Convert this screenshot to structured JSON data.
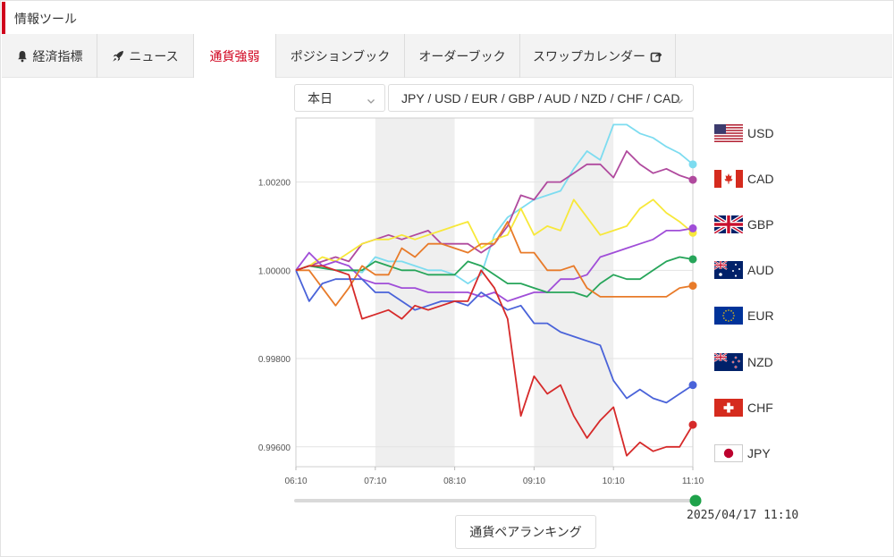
{
  "header": {
    "title": "情報ツール"
  },
  "tabs": [
    {
      "label": "経済指標",
      "icon": "bell-icon",
      "active": false
    },
    {
      "label": "ニュース",
      "icon": "rocket-icon",
      "active": false
    },
    {
      "label": "通貨強弱",
      "icon": "",
      "active": true
    },
    {
      "label": "ポジションブック",
      "icon": "",
      "active": false
    },
    {
      "label": "オーダーブック",
      "icon": "",
      "active": false
    },
    {
      "label": "スワップカレンダー",
      "icon": "external-link-icon",
      "active": false
    }
  ],
  "controls": {
    "period": "本日",
    "currencies": "JPY / USD / EUR / GBP / AUD / NZD / CHF / CAD"
  },
  "legend": [
    {
      "code": "USD",
      "flag": "us-flag-icon"
    },
    {
      "code": "CAD",
      "flag": "canada-flag-icon"
    },
    {
      "code": "GBP",
      "flag": "uk-flag-icon"
    },
    {
      "code": "AUD",
      "flag": "australia-flag-icon"
    },
    {
      "code": "EUR",
      "flag": "eu-flag-icon"
    },
    {
      "code": "NZD",
      "flag": "new-zealand-flag-icon"
    },
    {
      "code": "CHF",
      "flag": "switzerland-flag-icon"
    },
    {
      "code": "JPY",
      "flag": "japan-flag-icon"
    }
  ],
  "slider": {
    "timestamp": "2025/04/17 11:10",
    "position": 1.0,
    "color": "#1fa24a"
  },
  "ranking_button": "通貨ペアランキング",
  "chart_data": {
    "type": "line",
    "x": [
      "06:10",
      "06:20",
      "06:30",
      "06:40",
      "06:50",
      "07:00",
      "07:10",
      "07:20",
      "07:30",
      "07:40",
      "07:50",
      "08:00",
      "08:10",
      "08:20",
      "08:30",
      "08:40",
      "08:50",
      "09:00",
      "09:10",
      "09:20",
      "09:30",
      "09:40",
      "09:50",
      "10:00",
      "10:10",
      "10:20",
      "10:30",
      "10:40",
      "10:50",
      "11:00",
      "11:10"
    ],
    "x_ticks": [
      "06:10",
      "07:10",
      "08:10",
      "09:10",
      "10:10",
      "11:10"
    ],
    "y_ticks": [
      "1.00200",
      "1.00000",
      "0.99800",
      "0.99600"
    ],
    "ylim": [
      0.99555,
      1.00345
    ],
    "grid": true,
    "shaded_bands": [
      [
        "07:10",
        "08:10"
      ],
      [
        "09:10",
        "10:10"
      ]
    ],
    "series": [
      {
        "name": "USD",
        "color": "#7ddcf0",
        "values": [
          1.0,
          1.0001,
          1.00005,
          1.0,
          1.0,
          0.99995,
          1.0003,
          1.0002,
          1.0002,
          1.0001,
          1.0,
          1.0,
          0.9999,
          0.9997,
          0.9999,
          1.0008,
          1.0012,
          1.0014,
          1.0016,
          1.0017,
          1.0018,
          1.0023,
          1.0027,
          1.0025,
          1.0033,
          1.0033,
          1.0031,
          1.003,
          1.0028,
          1.00265,
          1.0024
        ]
      },
      {
        "name": "CAD",
        "color": "#b04a9e",
        "values": [
          1.0,
          1.0001,
          1.0002,
          1.0003,
          1.0002,
          1.0006,
          1.0007,
          1.0008,
          1.0007,
          1.0008,
          1.0009,
          1.0006,
          1.0006,
          1.0006,
          1.0004,
          1.0006,
          1.001,
          1.0017,
          1.0016,
          1.002,
          1.002,
          1.0022,
          1.0024,
          1.0024,
          1.0021,
          1.0027,
          1.0024,
          1.0022,
          1.0023,
          1.00215,
          1.00205
        ]
      },
      {
        "name": "GBP",
        "color": "#f7e83a",
        "values": [
          1.0,
          1.0001,
          1.0003,
          1.0002,
          1.0004,
          1.0006,
          1.0007,
          1.0007,
          1.0008,
          1.0007,
          1.0008,
          1.0009,
          1.001,
          1.0011,
          1.0005,
          1.0007,
          1.0008,
          1.0014,
          1.0008,
          1.001,
          1.0009,
          1.0016,
          1.0012,
          1.0008,
          1.0009,
          1.001,
          1.0014,
          1.0016,
          1.0013,
          1.0011,
          1.00085
        ]
      },
      {
        "name": "NZD",
        "color": "#a04ed8",
        "values": [
          1.0,
          1.0004,
          1.0001,
          1.0002,
          1.0001,
          0.9998,
          0.9997,
          0.9997,
          0.9996,
          0.9996,
          0.9995,
          0.9995,
          0.9995,
          0.9995,
          0.9994,
          0.9995,
          0.9993,
          0.9994,
          0.9995,
          0.9995,
          0.9998,
          0.9998,
          0.9999,
          1.0003,
          1.0004,
          1.0005,
          1.0006,
          1.0007,
          1.0009,
          1.0009,
          1.00095
        ]
      },
      {
        "name": "AUD",
        "color": "#27a55a",
        "values": [
          1.0,
          1.0001,
          1.00005,
          1.0,
          1.0,
          1.0,
          1.0002,
          1.0001,
          1.0,
          1.0,
          0.9999,
          0.9999,
          0.9999,
          1.0002,
          1.0001,
          0.9999,
          0.9997,
          0.9997,
          0.9996,
          0.9995,
          0.9995,
          0.9995,
          0.9994,
          0.9997,
          0.9999,
          0.9998,
          0.9998,
          1.0,
          1.0002,
          1.0003,
          1.00025
        ]
      },
      {
        "name": "EUR",
        "color": "#e87b2a",
        "values": [
          1.0,
          1.0,
          0.9996,
          0.9992,
          0.9996,
          1.0001,
          0.9999,
          0.9999,
          1.0005,
          1.0003,
          1.0006,
          1.0006,
          1.0005,
          1.0004,
          1.0006,
          1.0006,
          1.0011,
          1.0004,
          1.0004,
          1.0,
          1.0,
          1.0001,
          0.9996,
          0.9994,
          0.9994,
          0.9994,
          0.9994,
          0.9994,
          0.9994,
          0.9996,
          0.99965
        ]
      },
      {
        "name": "CHF",
        "color": "#4a63d9",
        "values": [
          1.0,
          0.9993,
          0.9997,
          0.9998,
          0.9998,
          0.9998,
          0.9995,
          0.9995,
          0.9993,
          0.9991,
          0.9992,
          0.9993,
          0.9993,
          0.9992,
          0.9995,
          0.9993,
          0.9991,
          0.9992,
          0.9988,
          0.9988,
          0.9986,
          0.9985,
          0.9984,
          0.9983,
          0.9975,
          0.9971,
          0.9973,
          0.9971,
          0.997,
          0.9972,
          0.9974
        ]
      },
      {
        "name": "JPY",
        "color": "#d62a2a",
        "values": [
          1.0,
          1.0001,
          1.0001,
          1.0,
          0.9999,
          0.9989,
          0.999,
          0.9991,
          0.9989,
          0.9992,
          0.9991,
          0.9992,
          0.9993,
          0.9993,
          1.0,
          0.9996,
          0.9989,
          0.9967,
          0.9976,
          0.9972,
          0.9974,
          0.9967,
          0.9962,
          0.9966,
          0.9969,
          0.9958,
          0.9961,
          0.9959,
          0.996,
          0.996,
          0.9965
        ]
      }
    ]
  }
}
